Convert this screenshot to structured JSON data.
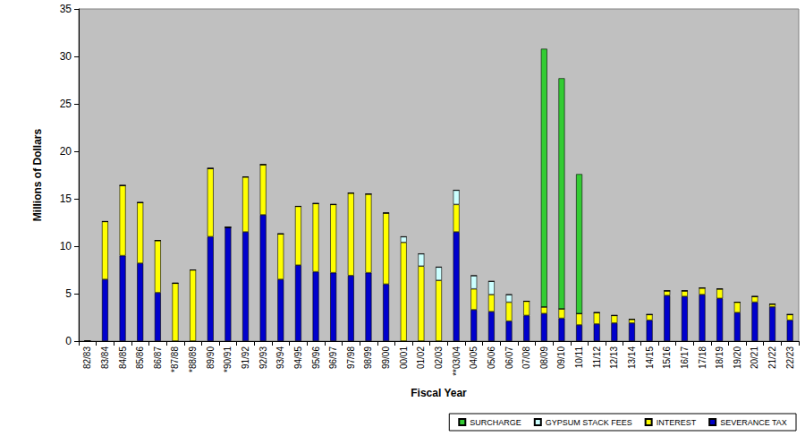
{
  "chart_data": {
    "type": "bar",
    "stacked": true,
    "grid": false,
    "legend": "lower right",
    "x_label": "Fiscal Year",
    "y_label": "Millions of Dollars",
    "categories": [
      "82/83",
      "83/84",
      "84/85",
      "85/86",
      "86/87",
      "*87/88",
      "*88/89",
      "89/90",
      "*90/91",
      "91/92",
      "92/93",
      "93/94",
      "94/95",
      "95/96",
      "96/97",
      "97/98",
      "98/99",
      "99/00",
      "00/01",
      "01/02",
      "02/03",
      "**03/04",
      "04/05",
      "05/06",
      "06/07",
      "07/08",
      "08/09",
      "09/10",
      "10/11",
      "11/12",
      "12/13",
      "13/14",
      "14/15",
      "15/16",
      "16/17",
      "17/18",
      "18/19",
      "19/20",
      "20/21",
      "21/22",
      "22/23"
    ],
    "ylim": [
      0,
      35
    ],
    "yticks": [
      0,
      5,
      10,
      15,
      20,
      25,
      30,
      35
    ],
    "series": [
      {
        "name": "SURCHARGE",
        "color": "#33cc33",
        "values": [
          0,
          0,
          0,
          0,
          0,
          0,
          0,
          0,
          0,
          0,
          0,
          0,
          0,
          0,
          0,
          0,
          0,
          0,
          0,
          0,
          0,
          0,
          0,
          0,
          0,
          0,
          27.2,
          24.3,
          14.7,
          0,
          0,
          0,
          0,
          0,
          0,
          0,
          0,
          0,
          0,
          0,
          0
        ]
      },
      {
        "name": "GYPSUM STACK FEES",
        "color": "#ccffff",
        "values": [
          0,
          0,
          0,
          0,
          0,
          0,
          0,
          0,
          0,
          0,
          0,
          0,
          0,
          0,
          0,
          0,
          0,
          0,
          0.6,
          1.3,
          1.4,
          1.5,
          1.4,
          1.4,
          0.8,
          0,
          0,
          0,
          0,
          0,
          0,
          0,
          0,
          0,
          0,
          0,
          0,
          0,
          0,
          0,
          0
        ]
      },
      {
        "name": "INTEREST",
        "color": "#ffff00",
        "values": [
          0,
          6.1,
          7.4,
          6.4,
          5.5,
          6.1,
          7.5,
          7.2,
          0,
          5.8,
          5.3,
          4.8,
          6.2,
          7.2,
          7.2,
          8.7,
          8.3,
          7.5,
          10.4,
          7.9,
          6.4,
          2.9,
          2.2,
          1.8,
          2.0,
          1.5,
          0.7,
          1.0,
          1.2,
          1.2,
          0.8,
          0.4,
          0.6,
          0.5,
          0.6,
          0.7,
          1.0,
          1.1,
          0.6,
          0.3,
          0.6
        ]
      },
      {
        "name": "SEVERANCE TAX",
        "color": "#0000cc",
        "values": [
          0,
          6.5,
          9.0,
          8.2,
          5.1,
          0,
          0,
          11.0,
          12.0,
          11.5,
          13.3,
          6.5,
          8.0,
          7.3,
          7.2,
          6.9,
          7.2,
          6.0,
          0,
          0,
          0,
          11.5,
          3.3,
          3.1,
          2.1,
          2.7,
          2.9,
          2.4,
          1.7,
          1.8,
          1.9,
          1.9,
          2.2,
          4.8,
          4.7,
          4.9,
          4.5,
          3.0,
          4.1,
          3.6,
          2.2
        ]
      }
    ]
  }
}
